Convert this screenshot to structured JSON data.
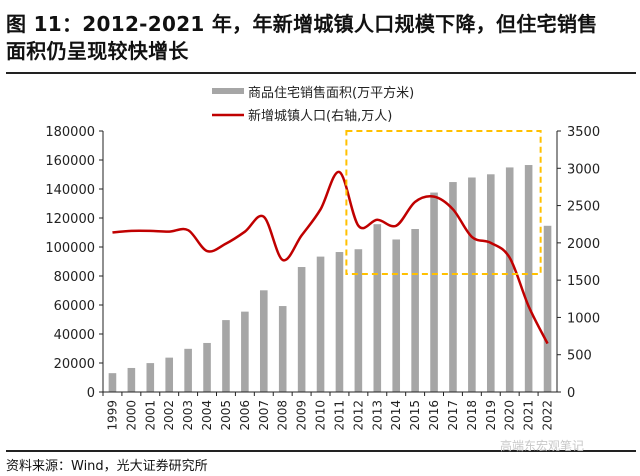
{
  "title_line1": "图 11：2012-2021 年，年新增城镇人口规模下降，但住宅销售",
  "title_line2": "面积仍呈现较快增长",
  "source": "资料来源：Wind，光大证券研究所",
  "watermark": "高端东宏观笔记",
  "chart_data": {
    "type": "bar+line",
    "categories": [
      "1999",
      "2000",
      "2001",
      "2002",
      "2003",
      "2004",
      "2005",
      "2006",
      "2007",
      "2008",
      "2009",
      "2010",
      "2011",
      "2012",
      "2013",
      "2014",
      "2015",
      "2016",
      "2017",
      "2018",
      "2019",
      "2020",
      "2021",
      "2022"
    ],
    "series": [
      {
        "name": "商品住宅销售面积(万平方米)",
        "type": "bar",
        "axis": "left",
        "color": "#a6a6a6",
        "values": [
          12998,
          16570,
          19939,
          23702,
          29779,
          33820,
          49588,
          55423,
          70136,
          59280,
          86185,
          93377,
          96528,
          98468,
          115723,
          105188,
          112412,
          137540,
          144789,
          147929,
          150144,
          154878,
          156532,
          114631
        ]
      },
      {
        "name": "新增城镇人口(右轴,万人)",
        "type": "line",
        "axis": "right",
        "color": "#c00000",
        "values": [
          2140,
          2160,
          2160,
          2150,
          2170,
          1890,
          1990,
          2150,
          2350,
          1770,
          2100,
          2450,
          2950,
          2230,
          2310,
          2230,
          2550,
          2620,
          2450,
          2080,
          2000,
          1800,
          1150,
          650
        ]
      }
    ],
    "y_left": {
      "min": 0,
      "max": 180000,
      "ticks": [
        0,
        20000,
        40000,
        60000,
        80000,
        100000,
        120000,
        140000,
        160000,
        180000
      ]
    },
    "y_right": {
      "min": 0,
      "max": 3500,
      "ticks": [
        0,
        500,
        1000,
        1500,
        2000,
        2500,
        3000,
        3500
      ]
    },
    "legend_position": "top-center",
    "grid": false,
    "highlight": {
      "from": "2012",
      "to": "2021",
      "color": "#ffc000",
      "style": "dashed"
    }
  }
}
